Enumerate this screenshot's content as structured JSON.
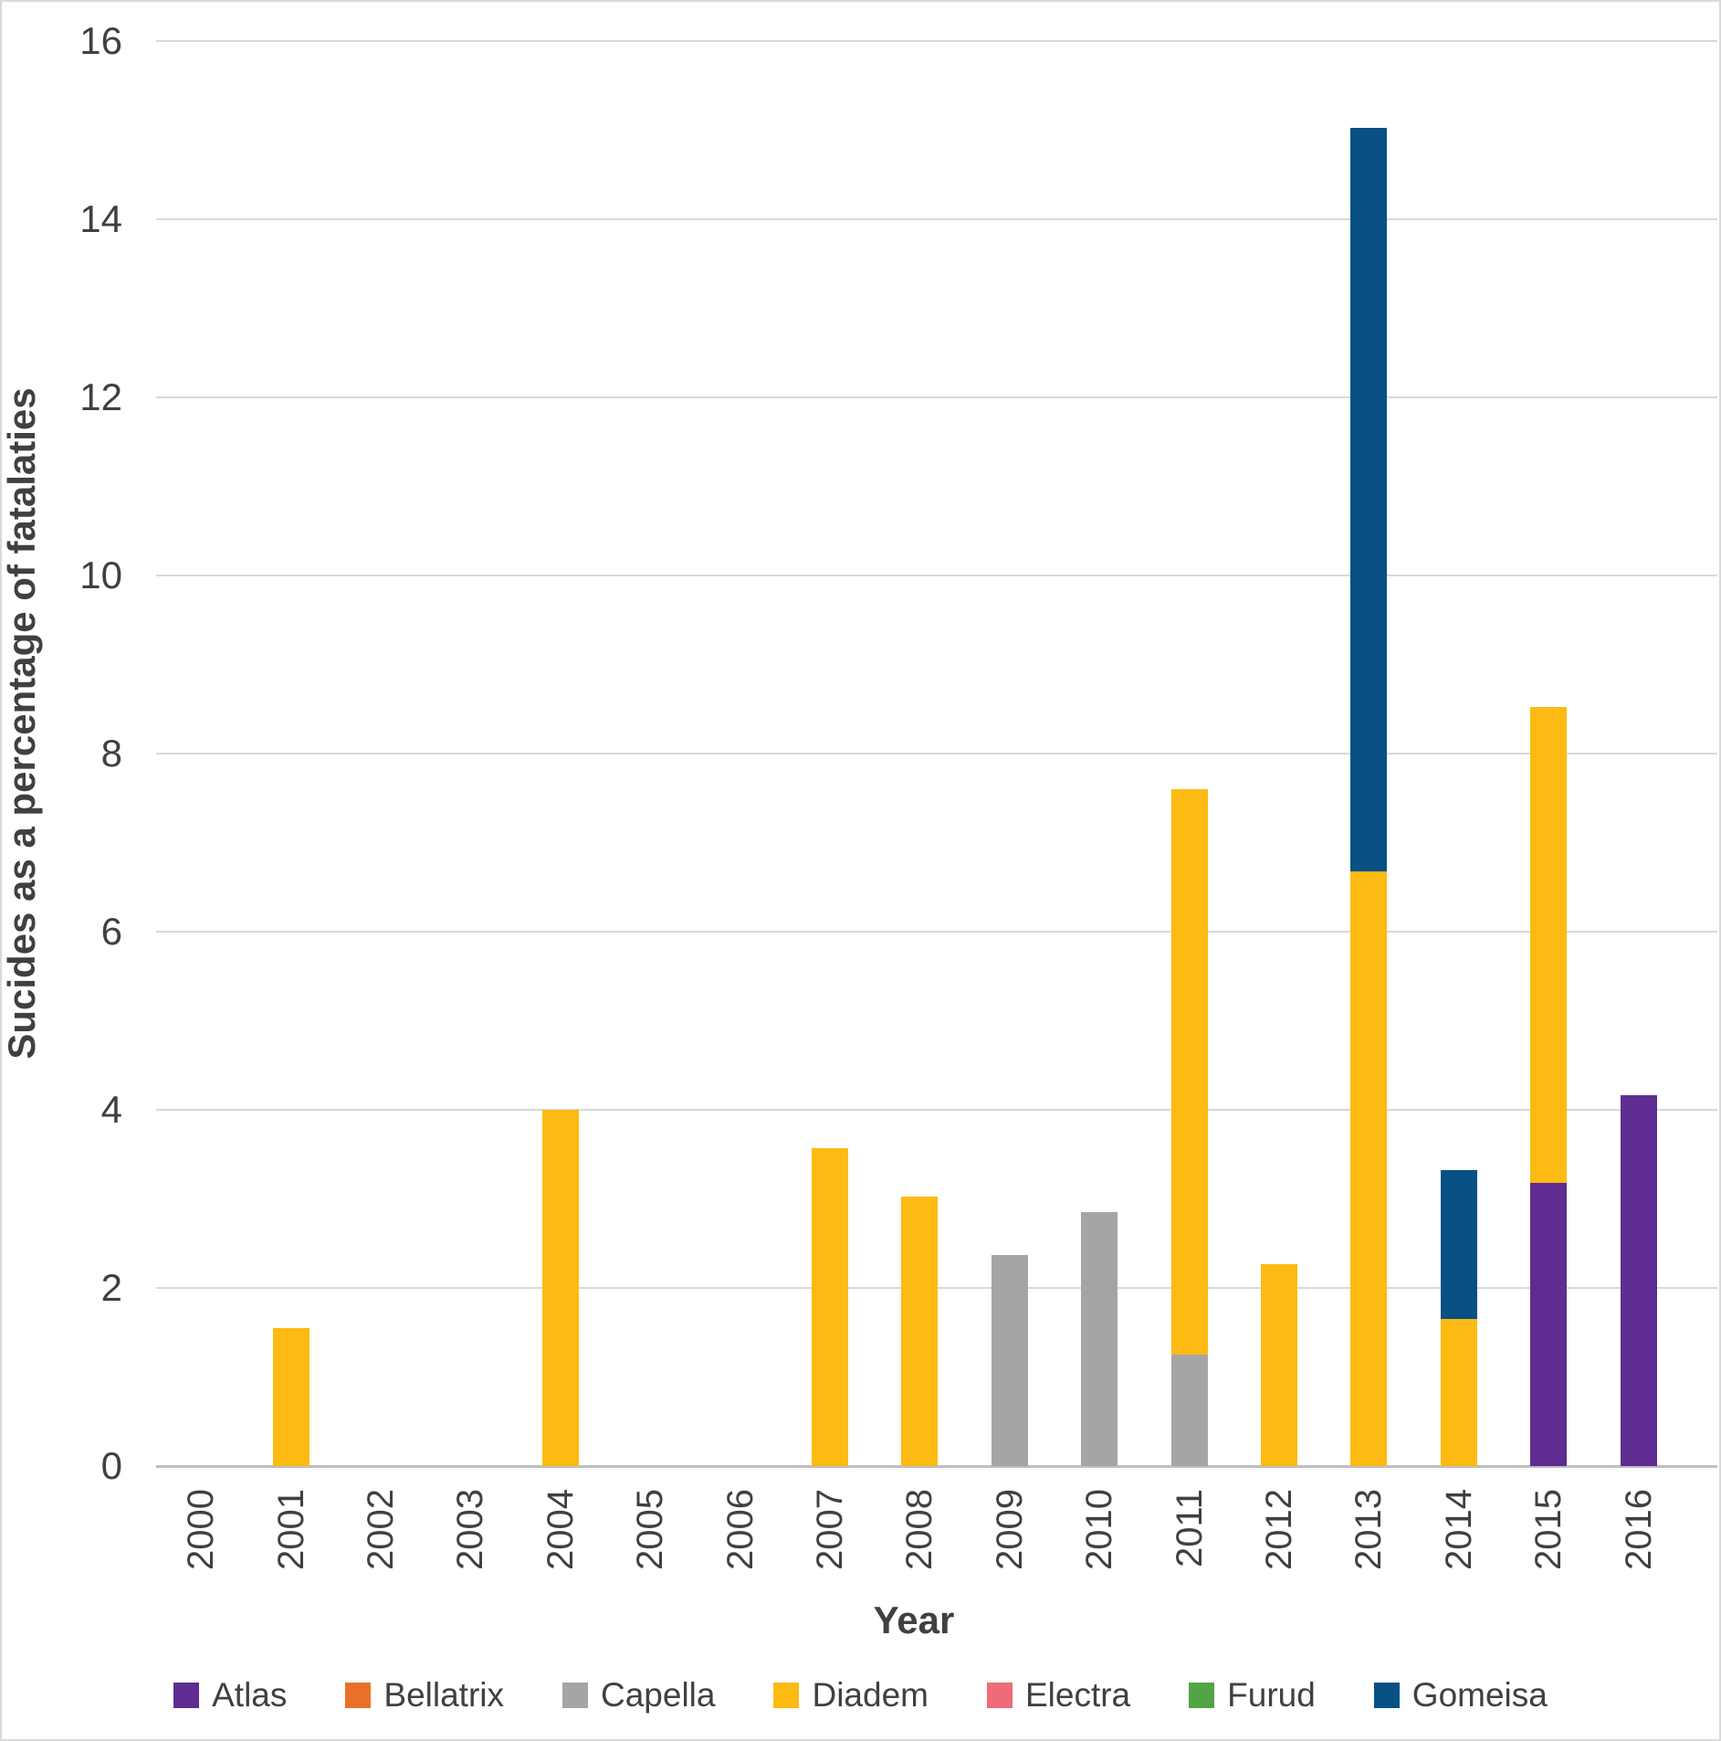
{
  "chart_data": {
    "type": "bar",
    "stacked": true,
    "title": "",
    "xlabel": "Year",
    "ylabel": "Sucides as a percentage of fatalaties",
    "ylim": [
      0,
      16
    ],
    "ytick_interval": 2,
    "ytick_labels": [
      "0",
      "2",
      "4",
      "6",
      "8",
      "10",
      "12",
      "14",
      "16"
    ],
    "grid": "horizontal-only",
    "legend_position": "bottom",
    "categories": [
      "2000",
      "2001",
      "2002",
      "2003",
      "2004",
      "2005",
      "2006",
      "2007",
      "2008",
      "2009",
      "2010",
      "2011",
      "2012",
      "2013",
      "2014",
      "2015",
      "2016"
    ],
    "series": [
      {
        "name": "Atlas",
        "color": "#5f2d91",
        "values": [
          0,
          0,
          0,
          0,
          0,
          0,
          0,
          0,
          0,
          0,
          0,
          0,
          0,
          0,
          0,
          3.18,
          4.16
        ]
      },
      {
        "name": "Bellatrix",
        "color": "#e8702a",
        "values": [
          0,
          0,
          0,
          0,
          0,
          0,
          0,
          0,
          0,
          0,
          0,
          0,
          0,
          0,
          0,
          0,
          0
        ]
      },
      {
        "name": "Capella",
        "color": "#a5a5a5",
        "values": [
          0,
          0,
          0,
          0,
          0,
          0,
          0,
          0,
          0,
          2.37,
          2.85,
          1.25,
          0,
          0,
          0,
          0,
          0
        ]
      },
      {
        "name": "Diadem",
        "color": "#fcba12",
        "values": [
          0,
          1.55,
          0,
          0,
          4,
          0,
          0,
          3.57,
          3.03,
          0,
          0,
          6.35,
          2.27,
          6.68,
          1.65,
          5.34,
          0
        ]
      },
      {
        "name": "Electra",
        "color": "#ee6b7a",
        "values": [
          0,
          0,
          0,
          0,
          0,
          0,
          0,
          0,
          0,
          0,
          0,
          0,
          0,
          0,
          0,
          0,
          0
        ]
      },
      {
        "name": "Furud",
        "color": "#52a447",
        "values": [
          0,
          0,
          0,
          0,
          0,
          0,
          0,
          0,
          0,
          0,
          0,
          0,
          0,
          0,
          0,
          0,
          0
        ]
      },
      {
        "name": "Gomeisa",
        "color": "#075184",
        "values": [
          0,
          0,
          0,
          0,
          0,
          0,
          0,
          0,
          0,
          0,
          0,
          0,
          0,
          8.35,
          1.67,
          0,
          0
        ]
      }
    ]
  },
  "colors": {
    "text": "#404040",
    "gridline": "#d9d9d9",
    "axis_line": "#bfbfbf",
    "background": "#ffffff",
    "border": "#d9d9d9"
  }
}
